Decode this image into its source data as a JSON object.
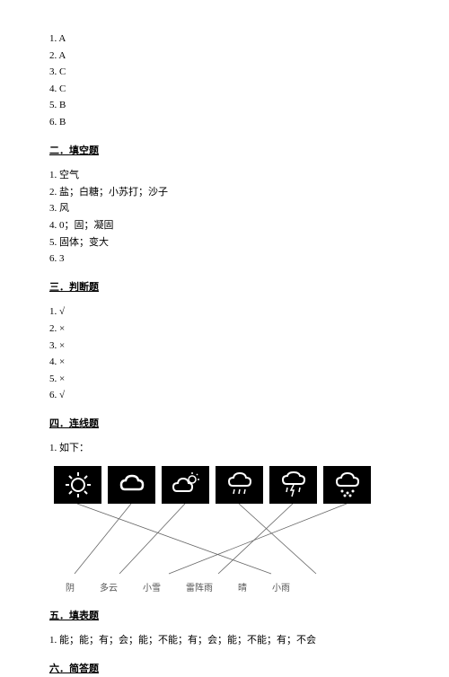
{
  "section1": {
    "answers": [
      {
        "num": "1",
        "val": "A"
      },
      {
        "num": "2",
        "val": "A"
      },
      {
        "num": "3",
        "val": "C"
      },
      {
        "num": "4",
        "val": "C"
      },
      {
        "num": "5",
        "val": "B"
      },
      {
        "num": "6",
        "val": "B"
      }
    ]
  },
  "section2": {
    "title": "二．填空题",
    "items": [
      "1. 空气",
      "2. 盐；白糖；小苏打；沙子",
      "3. 风",
      "4. 0；固；凝固",
      "5. 固体；变大",
      "6. 3"
    ]
  },
  "section3": {
    "title": "三．判断题",
    "items": [
      "1. √",
      "2. ×",
      "3. ×",
      "4. ×",
      "5. ×",
      "6. √"
    ]
  },
  "section4": {
    "title": "四．连线题",
    "intro": "1. 如下：",
    "labels": [
      "阴",
      "多云",
      "小雪",
      "雷阵雨",
      "晴",
      "小雨"
    ],
    "icon_bg": "#000000",
    "icon_fg": "#ffffff",
    "line_color": "#666666",
    "connections": [
      {
        "from": 0,
        "to": 4
      },
      {
        "from": 1,
        "to": 0
      },
      {
        "from": 2,
        "to": 1
      },
      {
        "from": 3,
        "to": 5
      },
      {
        "from": 4,
        "to": 3
      },
      {
        "from": 5,
        "to": 2
      }
    ]
  },
  "section5": {
    "title": "五．填表题",
    "content": "1. 能；能；有；会；能；不能；有；会；能；不能；有；不会"
  },
  "section6": {
    "title": "六．简答题"
  }
}
